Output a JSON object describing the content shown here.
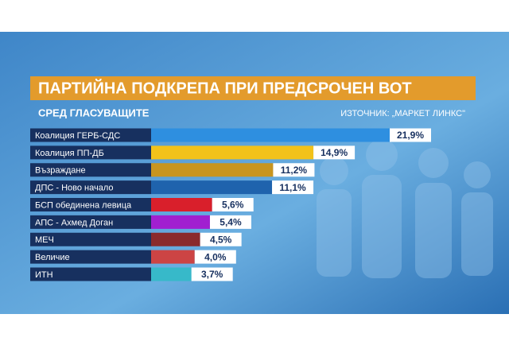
{
  "chart_data": {
    "type": "bar",
    "title": "ПАРТИЙНА ПОДКРЕПА ПРИ ПРЕДСРОЧЕН ВОТ",
    "subtitle": "СРЕД ГЛАСУВАЩИТЕ",
    "source": "ИЗТОЧНИК: „МАРКЕТ ЛИНКС\"",
    "categories": [
      "Коалиция ГЕРБ-СДС",
      "Коалиция ПП-ДБ",
      "Възраждане",
      "ДПС - Ново начало",
      "БСП обединена левица",
      "АПС - Ахмед Доган",
      "МЕЧ",
      "Величие",
      "ИТН"
    ],
    "values": [
      21.9,
      14.9,
      11.2,
      11.1,
      5.6,
      5.4,
      4.5,
      4.0,
      3.7
    ],
    "value_labels": [
      "21,9%",
      "14,9%",
      "11,2%",
      "11,1%",
      "5,6%",
      "5,4%",
      "4,5%",
      "4,0%",
      "3,7%"
    ],
    "colors": [
      "#2e8fe0",
      "#f2c21a",
      "#c8951f",
      "#1f63ad",
      "#d91f2b",
      "#a11fd0",
      "#8a2a2c",
      "#cc4444",
      "#37b9c9"
    ]
  }
}
